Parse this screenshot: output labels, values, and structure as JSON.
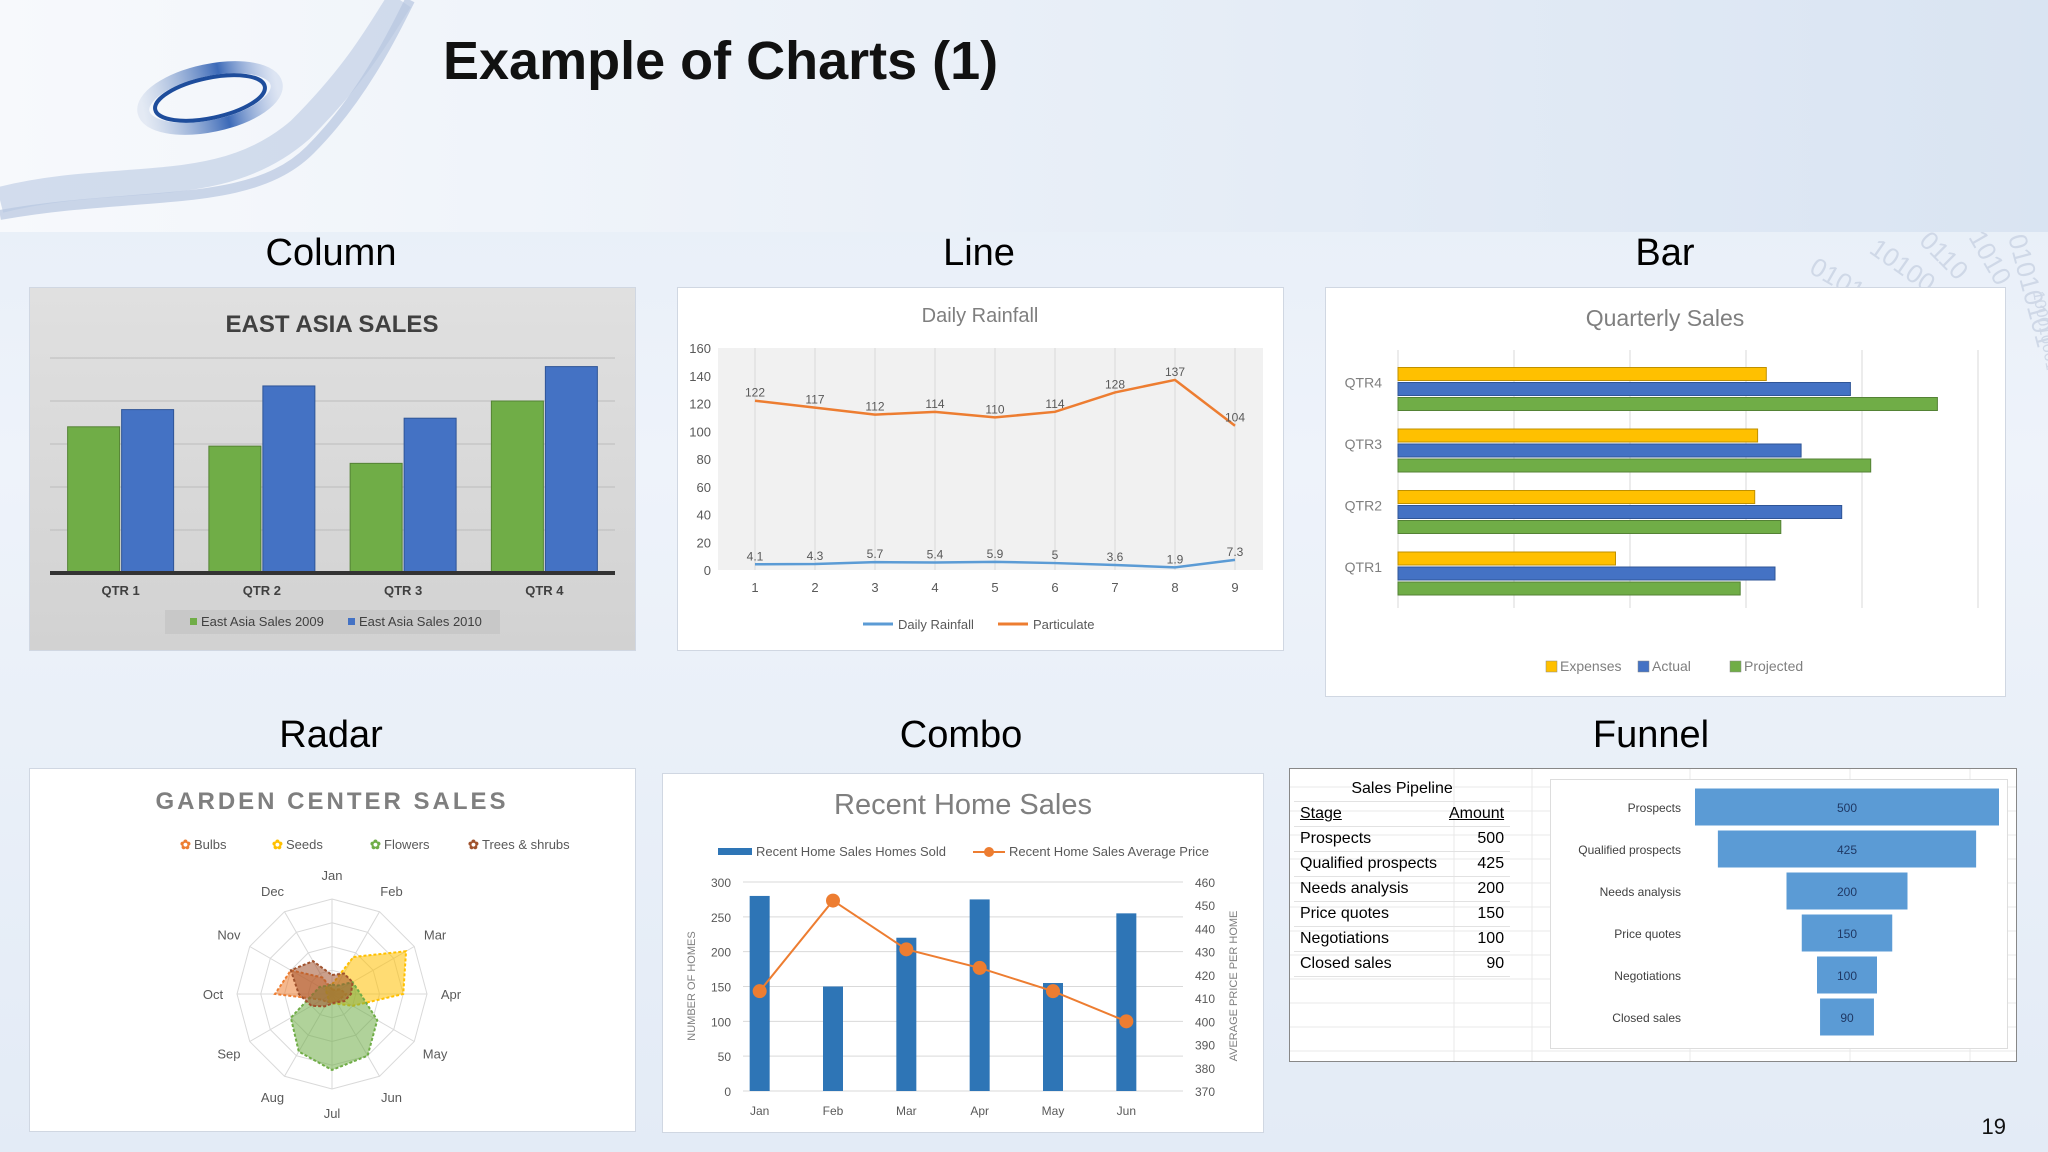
{
  "slide": {
    "title": "Example of Charts (1)",
    "page_number": "19",
    "labels": {
      "column": "Column",
      "line": "Line",
      "bar": "Bar",
      "radar": "Radar",
      "combo": "Combo",
      "funnel": "Funnel"
    }
  },
  "colors": {
    "green": "#70AD47",
    "blue": "#4472C4",
    "orange": "#ED7D31",
    "light_blue": "#5B9BD5",
    "yellow": "#FFC000",
    "combo_blue": "#2E75B6",
    "funnel_blue": "#5B9BD5"
  },
  "chart_data": [
    {
      "id": "column",
      "type": "bar",
      "title": "EAST ASIA SALES",
      "categories": [
        "QTR 1",
        "QTR 2",
        "QTR 3",
        "QTR 4"
      ],
      "series": [
        {
          "name": "East Asia Sales 2009",
          "values": [
            6.8,
            5.9,
            5.1,
            8.0
          ]
        },
        {
          "name": "East Asia Sales 2010",
          "values": [
            7.6,
            8.7,
            7.2,
            9.6
          ]
        }
      ],
      "ylim": [
        0,
        10
      ],
      "legend": "bottom"
    },
    {
      "id": "line",
      "type": "line",
      "title": "Daily Rainfall",
      "x": [
        1,
        2,
        3,
        4,
        5,
        6,
        7,
        8,
        9
      ],
      "yticks": [
        0,
        20,
        40,
        60,
        80,
        100,
        120,
        140,
        160
      ],
      "ylim": [
        0,
        160
      ],
      "series": [
        {
          "name": "Daily Rainfall",
          "values": [
            4.1,
            4.3,
            5.7,
            5.4,
            5.9,
            5,
            3.6,
            1.9,
            7.3
          ]
        },
        {
          "name": "Particulate",
          "values": [
            122,
            117,
            112,
            114,
            110,
            114,
            128,
            137,
            104
          ]
        }
      ],
      "legend": "bottom"
    },
    {
      "id": "bar",
      "type": "bar",
      "orientation": "horizontal",
      "title": "Quarterly Sales",
      "categories": [
        "QTR1",
        "QTR2",
        "QTR3",
        "QTR4"
      ],
      "series": [
        {
          "name": "Expenses",
          "values": [
            7.5,
            12.3,
            12.4,
            12.7
          ]
        },
        {
          "name": "Actual",
          "values": [
            13.0,
            15.3,
            13.9,
            15.6
          ]
        },
        {
          "name": "Projected",
          "values": [
            11.8,
            13.2,
            16.3,
            18.6
          ]
        }
      ],
      "xlim": [
        0,
        20
      ],
      "legend": "bottom"
    },
    {
      "id": "radar",
      "type": "radar",
      "title": "GARDEN CENTER SALES",
      "categories": [
        "Jan",
        "Feb",
        "Mar",
        "Apr",
        "May",
        "Jun",
        "Jul",
        "Aug",
        "Sep",
        "Oct",
        "Nov",
        "Dec"
      ],
      "series": [
        {
          "name": "Bulbs",
          "values": [
            0.05,
            0.05,
            0.1,
            0.15,
            0.1,
            0.1,
            0.08,
            0.1,
            0.12,
            0.6,
            0.5,
            0.2
          ]
        },
        {
          "name": "Seeds",
          "values": [
            0.1,
            0.45,
            0.9,
            0.75,
            0.25,
            0.12,
            0.1,
            0.08,
            0.05,
            0.05,
            0.08,
            0.1
          ]
        },
        {
          "name": "Flowers",
          "values": [
            0.1,
            0.1,
            0.25,
            0.3,
            0.55,
            0.75,
            0.8,
            0.7,
            0.5,
            0.2,
            0.15,
            0.1
          ]
        },
        {
          "name": "Trees & shrubs",
          "values": [
            0.2,
            0.25,
            0.25,
            0.2,
            0.15,
            0.1,
            0.1,
            0.15,
            0.25,
            0.35,
            0.5,
            0.4
          ]
        }
      ],
      "legend": "top"
    },
    {
      "id": "combo",
      "type": "bar",
      "title": "Recent Home Sales",
      "categories": [
        "Jan",
        "Feb",
        "Mar",
        "Apr",
        "May",
        "Jun"
      ],
      "series": [
        {
          "name": "Recent Home Sales Homes Sold",
          "values": [
            280,
            150,
            220,
            275,
            155,
            255
          ],
          "axis": "left"
        },
        {
          "name": "Recent Home Sales Average Price",
          "values": [
            413,
            452,
            431,
            423,
            413,
            400
          ],
          "axis": "right",
          "type": "line"
        }
      ],
      "ylabel": "NUMBER OF HOMES",
      "y2label": "AVERAGE PRICE PER HOME",
      "ylim": [
        0,
        300
      ],
      "y2lim": [
        370,
        460
      ],
      "yticks": [
        0,
        50,
        100,
        150,
        200,
        250,
        300
      ],
      "y2ticks": [
        370,
        380,
        390,
        400,
        410,
        420,
        430,
        440,
        450,
        460
      ],
      "legend": "top"
    },
    {
      "id": "funnel",
      "type": "funnel",
      "title": "Sales Pipeline",
      "headers": [
        "Stage",
        "Amount"
      ],
      "categories": [
        "Prospects",
        "Qualified prospects",
        "Needs analysis",
        "Price quotes",
        "Negotiations",
        "Closed sales"
      ],
      "values": [
        500,
        425,
        200,
        150,
        100,
        90
      ]
    }
  ]
}
